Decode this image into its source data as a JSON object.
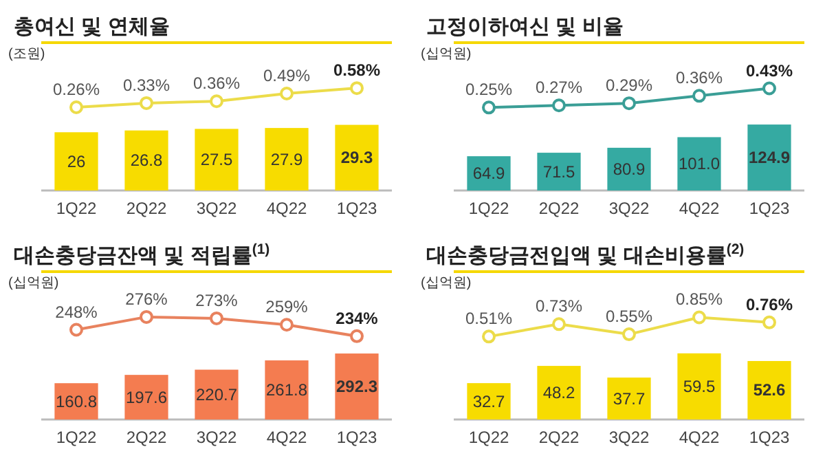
{
  "chart_data": [
    {
      "type": "bar",
      "title": "총여신 및 연체율",
      "ylabel": "(조원)",
      "ylim": [
        0,
        66
      ],
      "y2lim": [
        -1.13,
        1.34
      ],
      "tick_labels": "x",
      "categories": [
        "1Q22",
        "2Q22",
        "3Q22",
        "4Q22",
        "1Q23"
      ],
      "marker": "circle",
      "series": [
        {
          "type": "bar",
          "color": "#f7dc00",
          "values": [
            26,
            26.8,
            27.5,
            27.9,
            29.3
          ],
          "value_labels": [
            "26",
            "26.8",
            "27.5",
            "27.9",
            "29.3"
          ]
        },
        {
          "type": "line",
          "axis": "y2",
          "color": "#ecdc4a",
          "values": [
            0.26,
            0.33,
            0.36,
            0.49,
            0.58
          ],
          "value_labels": [
            "0.26%",
            "0.33%",
            "0.36%",
            "0.49%",
            "0.58%"
          ]
        }
      ]
    },
    {
      "type": "bar",
      "title": "고정이하여신 및 비율",
      "ylabel": "(십억원)",
      "ylim": [
        0,
        280
      ],
      "y2lim": [
        -0.53,
        0.86
      ],
      "tick_labels": "x",
      "categories": [
        "1Q22",
        "2Q22",
        "3Q22",
        "4Q22",
        "1Q23"
      ],
      "marker": "circle",
      "series": [
        {
          "type": "bar",
          "color": "#35aaa2",
          "values": [
            64.9,
            71.5,
            80.9,
            101.0,
            124.9
          ],
          "value_labels": [
            "64.9",
            "71.5",
            "80.9",
            "101.0",
            "124.9"
          ]
        },
        {
          "type": "line",
          "axis": "y2",
          "color": "#3a9e96",
          "values": [
            0.25,
            0.27,
            0.29,
            0.36,
            0.43
          ],
          "value_labels": [
            "0.25%",
            "0.27%",
            "0.29%",
            "0.36%",
            "0.43%"
          ]
        }
      ]
    },
    {
      "type": "bar",
      "title": "대손충당금잔액 및 적립률$^{(1)}$",
      "ylabel": "(십억원)",
      "ylim": [
        0,
        655
      ],
      "y2lim": [
        52,
        375
      ],
      "tick_labels": "x",
      "categories": [
        "1Q22",
        "2Q22",
        "3Q22",
        "4Q22",
        "1Q23"
      ],
      "marker": "circle",
      "series": [
        {
          "type": "bar",
          "color": "#f47c50",
          "values": [
            160.8,
            197.6,
            220.7,
            261.8,
            292.3
          ],
          "value_labels": [
            "160.8",
            "197.6",
            "220.7",
            "261.8",
            "292.3"
          ]
        },
        {
          "type": "line",
          "axis": "y2",
          "color": "#e8825e",
          "values": [
            248,
            276,
            273,
            259,
            234
          ],
          "value_labels": [
            "248%",
            "276%",
            "273%",
            "259%",
            "234%"
          ]
        }
      ]
    },
    {
      "type": "bar",
      "title": "대손충당금전입액 및 대손비용률$^{(2)}$",
      "ylabel": "(십억원)",
      "ylim": [
        0,
        133
      ],
      "y2lim": [
        -0.96,
        1.66
      ],
      "tick_labels": "x",
      "categories": [
        "1Q22",
        "2Q22",
        "3Q22",
        "4Q22",
        "1Q23"
      ],
      "marker": "circle",
      "series": [
        {
          "type": "bar",
          "color": "#f7dc00",
          "values": [
            32.7,
            48.2,
            37.7,
            59.5,
            52.6
          ],
          "value_labels": [
            "32.7",
            "48.2",
            "37.7",
            "59.5",
            "52.6"
          ]
        },
        {
          "type": "line",
          "axis": "y2",
          "color": "#ecdc4a",
          "values": [
            0.51,
            0.73,
            0.55,
            0.85,
            0.76
          ],
          "value_labels": [
            "0.51%",
            "0.73%",
            "0.55%",
            "0.85%",
            "0.76%"
          ]
        }
      ]
    }
  ]
}
